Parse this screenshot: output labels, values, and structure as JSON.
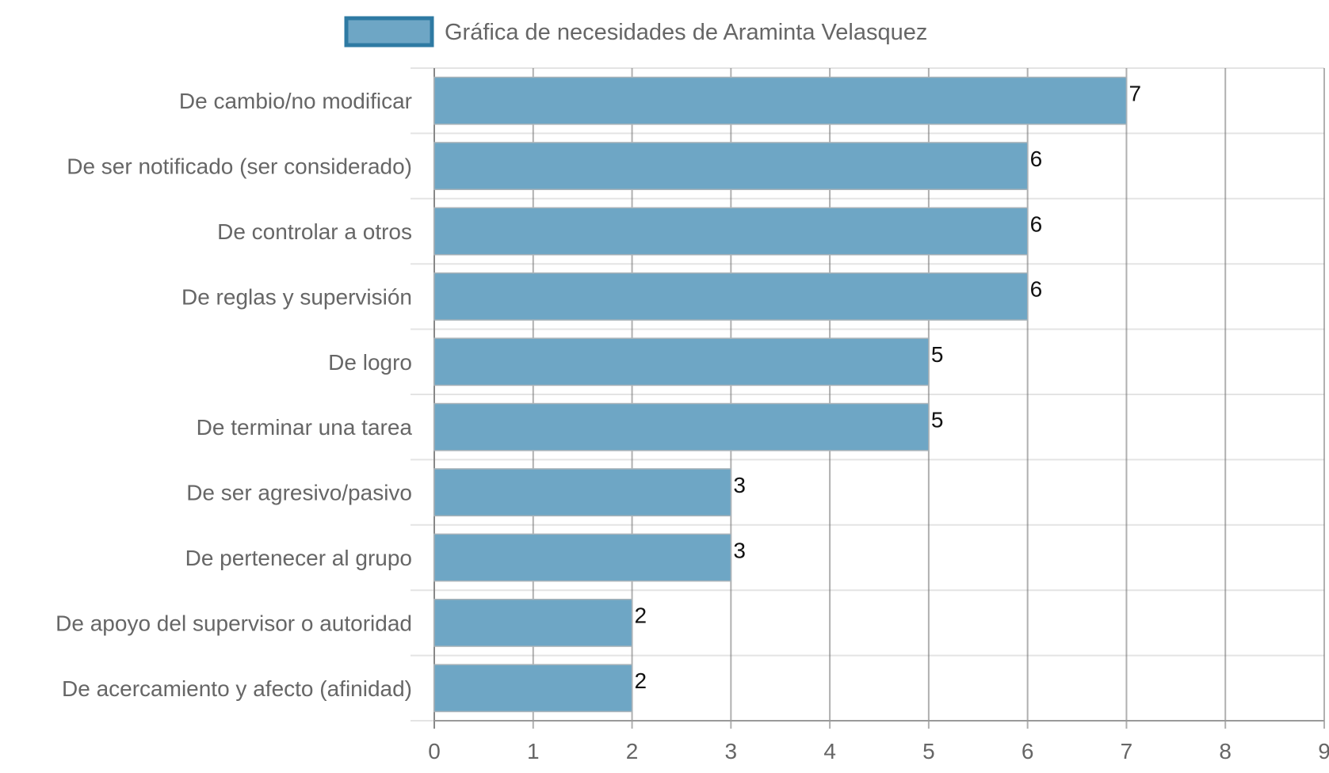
{
  "chart_data": {
    "type": "bar",
    "orientation": "horizontal",
    "categories": [
      "De cambio/no modificar",
      "De ser notificado (ser considerado)",
      "De controlar a otros",
      "De reglas y supervisión",
      "De logro",
      "De terminar una tarea",
      "De ser agresivo/pasivo",
      "De pertenecer al grupo",
      "De apoyo del supervisor o autoridad",
      "De acercamiento y afecto (afinidad)"
    ],
    "series": [
      {
        "name": "Gráfica de necesidades de Araminta Velasquez",
        "values": [
          7,
          6,
          6,
          6,
          5,
          5,
          3,
          3,
          2,
          2
        ],
        "color": "#6ea6c5",
        "border_color": "#2e7aa3"
      }
    ],
    "xlim": [
      0,
      9
    ],
    "ticks": [
      0,
      1,
      2,
      3,
      4,
      5,
      6,
      7,
      8,
      9
    ],
    "grid": true,
    "legend_position": "top-center",
    "data_labels": true
  }
}
